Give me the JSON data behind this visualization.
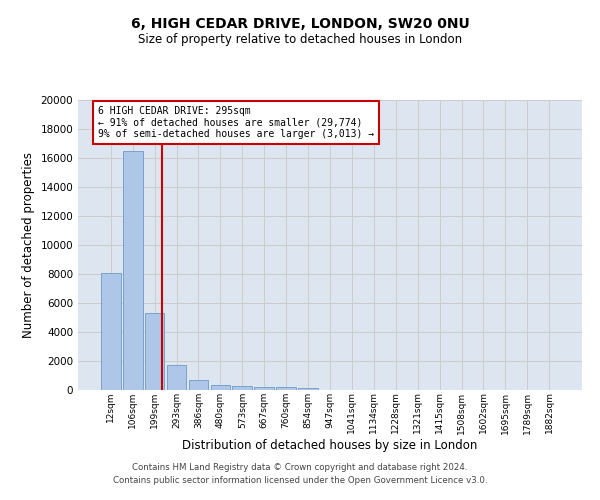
{
  "title": "6, HIGH CEDAR DRIVE, LONDON, SW20 0NU",
  "subtitle": "Size of property relative to detached houses in London",
  "xlabel": "Distribution of detached houses by size in London",
  "ylabel": "Number of detached properties",
  "categories": [
    "12sqm",
    "106sqm",
    "199sqm",
    "293sqm",
    "386sqm",
    "480sqm",
    "573sqm",
    "667sqm",
    "760sqm",
    "854sqm",
    "947sqm",
    "1041sqm",
    "1134sqm",
    "1228sqm",
    "1321sqm",
    "1415sqm",
    "1508sqm",
    "1602sqm",
    "1695sqm",
    "1789sqm",
    "1882sqm"
  ],
  "values": [
    8100,
    16500,
    5300,
    1750,
    700,
    350,
    260,
    220,
    180,
    130,
    0,
    0,
    0,
    0,
    0,
    0,
    0,
    0,
    0,
    0,
    0
  ],
  "bar_color": "#aec6e8",
  "bar_edge_color": "#5b8fbe",
  "vline_x": 2.32,
  "vline_color": "#cc0000",
  "annotation_text": "6 HIGH CEDAR DRIVE: 295sqm\n← 91% of detached houses are smaller (29,774)\n9% of semi-detached houses are larger (3,013) →",
  "annotation_box_color": "#cc0000",
  "ylim": [
    0,
    20000
  ],
  "yticks": [
    0,
    2000,
    4000,
    6000,
    8000,
    10000,
    12000,
    14000,
    16000,
    18000,
    20000
  ],
  "grid_color": "#cccccc",
  "bg_color": "#dde6f0",
  "footer_line1": "Contains HM Land Registry data © Crown copyright and database right 2024.",
  "footer_line2": "Contains public sector information licensed under the Open Government Licence v3.0."
}
